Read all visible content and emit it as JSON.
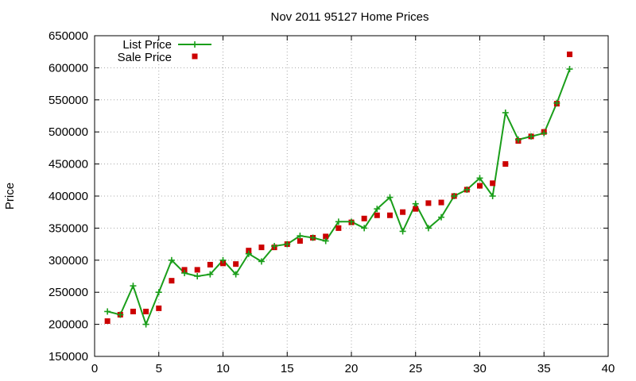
{
  "chart_data": {
    "type": "line",
    "title": "Nov 2011 95127 Home Prices",
    "xlabel": "",
    "ylabel": "Price",
    "xlim": [
      0,
      40
    ],
    "ylim": [
      150000,
      650000
    ],
    "x_ticks": [
      0,
      5,
      10,
      15,
      20,
      25,
      30,
      35,
      40
    ],
    "y_ticks": [
      150000,
      200000,
      250000,
      300000,
      350000,
      400000,
      450000,
      500000,
      550000,
      600000,
      650000
    ],
    "grid": true,
    "legend_position": "top-left",
    "series": [
      {
        "name": "List Price",
        "style": "lines+points",
        "marker": "plus",
        "color": "#1a9e1a",
        "x": [
          1,
          2,
          3,
          4,
          5,
          6,
          7,
          8,
          9,
          10,
          11,
          12,
          13,
          14,
          15,
          16,
          17,
          18,
          19,
          20,
          21,
          22,
          23,
          24,
          25,
          26,
          27,
          28,
          29,
          30,
          31,
          32,
          33,
          34,
          35,
          36,
          37
        ],
        "y": [
          220000,
          215000,
          260000,
          200000,
          250000,
          300000,
          280000,
          275000,
          278000,
          300000,
          278000,
          310000,
          298000,
          322000,
          325000,
          338000,
          335000,
          330000,
          360000,
          360000,
          350000,
          380000,
          398000,
          345000,
          388000,
          350000,
          367000,
          400000,
          410000,
          428000,
          400000,
          530000,
          488000,
          493000,
          498000,
          545000,
          598000
        ]
      },
      {
        "name": "Sale Price",
        "style": "points",
        "marker": "square",
        "color": "#cc0000",
        "x": [
          1,
          2,
          3,
          4,
          5,
          6,
          7,
          8,
          9,
          10,
          11,
          12,
          13,
          14,
          15,
          16,
          17,
          18,
          19,
          20,
          21,
          22,
          23,
          24,
          25,
          26,
          27,
          28,
          29,
          30,
          31,
          32,
          33,
          34,
          35,
          36,
          37
        ],
        "y": [
          205000,
          215000,
          220000,
          220000,
          225000,
          268000,
          285000,
          285000,
          293000,
          295000,
          294000,
          315000,
          320000,
          320000,
          325000,
          330000,
          335000,
          337000,
          350000,
          359000,
          365000,
          370000,
          370000,
          375000,
          380000,
          389000,
          390000,
          400000,
          410000,
          416000,
          420000,
          450000,
          486000,
          493000,
          500000,
          544000,
          621000
        ]
      }
    ]
  }
}
